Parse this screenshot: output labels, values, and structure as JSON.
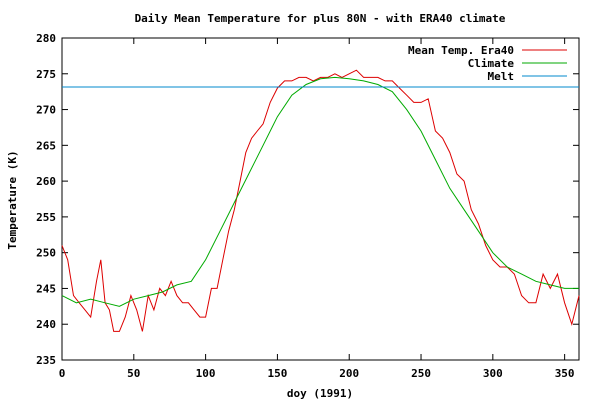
{
  "chart_data": {
    "type": "line",
    "title": "Daily Mean Temperature for plus 80N - with ERA40 climate",
    "xlabel": "doy (1991)",
    "ylabel": "Temperature (K)",
    "xlim": [
      0,
      360
    ],
    "ylim": [
      235,
      280
    ],
    "x_ticks": [
      0,
      50,
      100,
      150,
      200,
      250,
      300,
      350
    ],
    "y_ticks": [
      235,
      240,
      245,
      250,
      255,
      260,
      265,
      270,
      275,
      280
    ],
    "legend_position": "top-right",
    "series": [
      {
        "name": "Mean Temp. Era40",
        "color": "#dd0000",
        "x": [
          0,
          4,
          8,
          12,
          16,
          20,
          24,
          27,
          30,
          33,
          36,
          40,
          44,
          48,
          52,
          56,
          60,
          64,
          68,
          72,
          76,
          80,
          84,
          88,
          92,
          96,
          100,
          104,
          108,
          112,
          116,
          120,
          124,
          128,
          132,
          136,
          140,
          145,
          150,
          155,
          160,
          165,
          170,
          175,
          180,
          185,
          190,
          195,
          200,
          205,
          210,
          215,
          220,
          225,
          230,
          235,
          240,
          245,
          250,
          255,
          260,
          265,
          270,
          275,
          280,
          285,
          290,
          295,
          300,
          305,
          310,
          315,
          320,
          325,
          330,
          335,
          340,
          345,
          350,
          355,
          360
        ],
        "y": [
          251,
          249,
          244,
          243,
          242,
          241,
          246,
          249,
          243,
          242,
          239,
          239,
          241,
          244,
          242,
          239,
          244,
          242,
          245,
          244,
          246,
          244,
          243,
          243,
          242,
          241,
          241,
          245,
          245,
          249,
          253,
          256,
          260,
          264,
          266,
          267,
          268,
          271,
          273,
          274,
          274,
          274.5,
          274.5,
          274,
          274.5,
          274.5,
          275,
          274.5,
          275,
          275.5,
          274.5,
          274.5,
          274.5,
          274,
          274,
          273,
          272,
          271,
          271,
          271.5,
          267,
          266,
          264,
          261,
          260,
          256,
          254,
          251,
          249,
          248,
          248,
          247,
          244,
          243,
          243,
          247,
          245,
          247,
          243,
          240,
          244
        ]
      },
      {
        "name": "Climate",
        "color": "#00aa00",
        "x": [
          0,
          10,
          20,
          30,
          40,
          50,
          60,
          70,
          80,
          90,
          100,
          110,
          120,
          130,
          140,
          150,
          160,
          170,
          180,
          190,
          200,
          210,
          220,
          230,
          240,
          250,
          260,
          270,
          280,
          290,
          300,
          310,
          320,
          330,
          340,
          350,
          360
        ],
        "y": [
          244,
          243,
          243.5,
          243,
          242.5,
          243.5,
          244,
          244.5,
          245.5,
          246,
          249,
          253,
          257,
          261,
          265,
          269,
          272,
          273.5,
          274.3,
          274.5,
          274.3,
          274,
          273.5,
          272.5,
          270,
          267,
          263,
          259,
          256,
          253,
          250,
          248,
          247,
          246,
          245.5,
          245,
          245
        ]
      },
      {
        "name": "Melt",
        "color": "#0088cc",
        "x": [
          0,
          360
        ],
        "y": [
          273.15,
          273.15
        ]
      }
    ]
  }
}
